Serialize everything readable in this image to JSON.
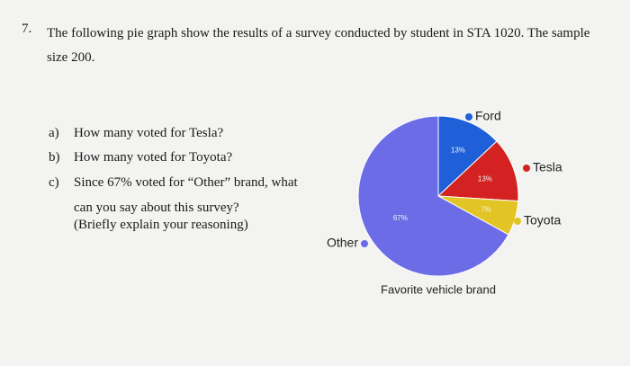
{
  "question": {
    "number": "7.",
    "text": "The following pie graph show the results of a survey conducted by student in STA 1020. The sample size 200.",
    "items": [
      {
        "label": "a)",
        "text": "How many voted for Tesla?"
      },
      {
        "label": "b)",
        "text": "How many voted for Toyota?"
      },
      {
        "label": "c)",
        "text": "Since 67% voted for “Other” brand, what can you say about this survey?"
      }
    ],
    "note": "(Briefly explain your reasoning)"
  },
  "chart_data": {
    "type": "pie",
    "title": "Favorite vehicle brand",
    "categories": [
      "Ford",
      "Tesla",
      "Toyota",
      "Other"
    ],
    "values": [
      13,
      13,
      7,
      67
    ],
    "value_labels": [
      "13%",
      "13%",
      "7%",
      "67%"
    ],
    "colors": [
      "#1f5fd8",
      "#d42222",
      "#e2c424",
      "#6b6ce6"
    ]
  }
}
